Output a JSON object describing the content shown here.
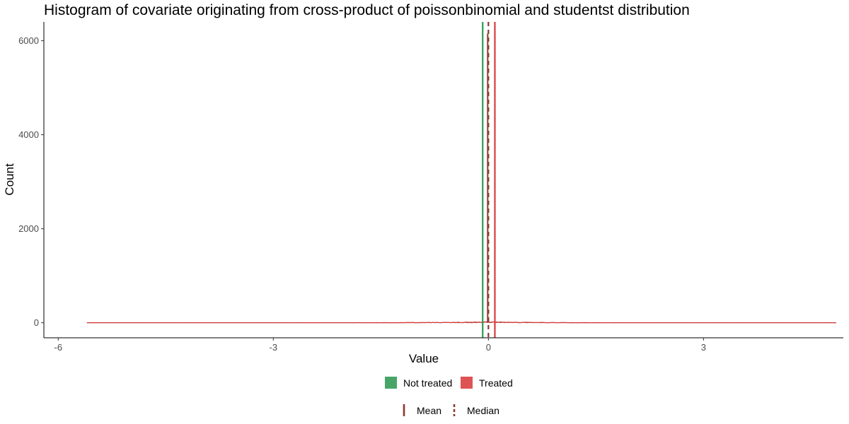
{
  "chart_data": {
    "type": "histogram",
    "title": "Histogram of covariate originating from cross-product of poissonbinomial and studentst distribution",
    "xlabel": "Value",
    "ylabel": "Count",
    "xlim": [
      -6.2,
      4.95
    ],
    "ylim": [
      -320,
      6400
    ],
    "x_ticks": [
      -6,
      -3,
      0,
      3
    ],
    "x_tick_labels": [
      "-6",
      "-3",
      "0",
      "3"
    ],
    "y_ticks": [
      0,
      2000,
      4000,
      6000
    ],
    "y_tick_labels": [
      "0",
      "2000",
      "4000",
      "6000"
    ],
    "grid": false,
    "data_range": [
      -5.6,
      4.85
    ],
    "series": [
      {
        "name": "Not treated",
        "color": "#2e9a52",
        "mean": -0.08,
        "median": -0.01,
        "peak_count": 6150
      },
      {
        "name": "Treated",
        "color": "#d93b3b",
        "mean": 0.09,
        "median": -0.01,
        "peak_count": 5900
      }
    ],
    "fill_legend": {
      "position": "bottom",
      "items": [
        {
          "label": "Not treated",
          "color": "#2e9a52"
        },
        {
          "label": "Treated",
          "color": "#d93b3b"
        }
      ]
    },
    "line_legend": {
      "position": "bottom",
      "color": "#8b3a2f",
      "items": [
        {
          "label": "Mean",
          "style": "solid"
        },
        {
          "label": "Median",
          "style": "dashed"
        }
      ]
    }
  }
}
